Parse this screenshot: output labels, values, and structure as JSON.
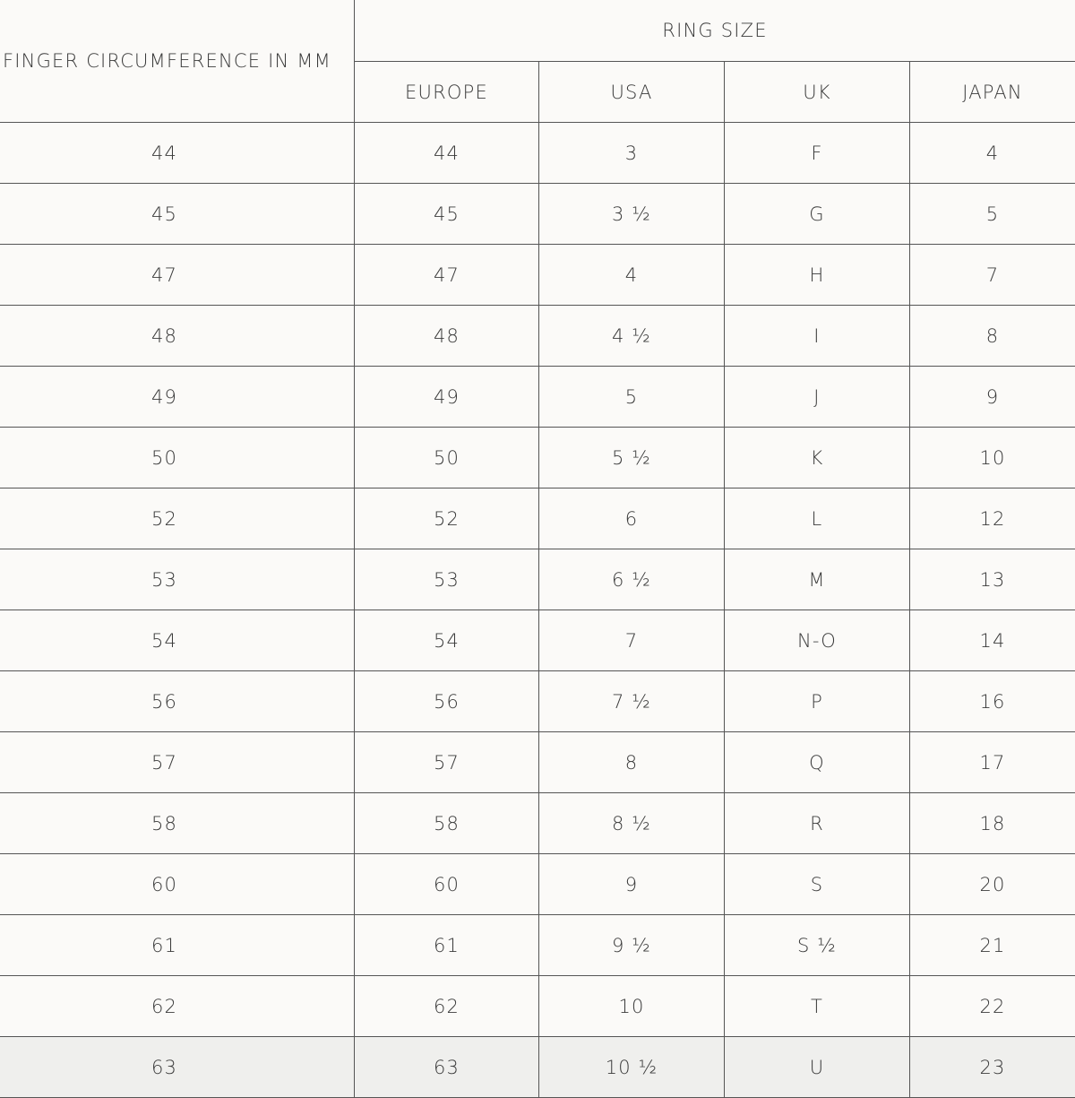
{
  "table": {
    "header": {
      "first": "FINGER CIRCUMFERENCE IN MM",
      "group": "RING SIZE",
      "columns": [
        "EUROPE",
        "USA",
        "UK",
        "JAPAN"
      ]
    },
    "rows": [
      [
        "44",
        "44",
        "3",
        "F",
        "4"
      ],
      [
        "45",
        "45",
        "3 ½",
        "G",
        "5"
      ],
      [
        "47",
        "47",
        "4",
        "H",
        "7"
      ],
      [
        "48",
        "48",
        "4 ½",
        "I",
        "8"
      ],
      [
        "49",
        "49",
        "5",
        "J",
        "9"
      ],
      [
        "50",
        "50",
        "5 ½",
        "K",
        "10"
      ],
      [
        "52",
        "52",
        "6",
        "L",
        "12"
      ],
      [
        "53",
        "53",
        "6 ½",
        "M",
        "13"
      ],
      [
        "54",
        "54",
        "7",
        "N-O",
        "14"
      ],
      [
        "56",
        "56",
        "7 ½",
        "P",
        "16"
      ],
      [
        "57",
        "57",
        "8",
        "Q",
        "17"
      ],
      [
        "58",
        "58",
        "8 ½",
        "R",
        "18"
      ],
      [
        "60",
        "60",
        "9",
        "S",
        "20"
      ],
      [
        "61",
        "61",
        "9 ½",
        "S ½",
        "21"
      ],
      [
        "62",
        "62",
        "10",
        "T",
        "22"
      ],
      [
        "63",
        "63",
        "10 ½",
        "U",
        "23"
      ]
    ]
  }
}
